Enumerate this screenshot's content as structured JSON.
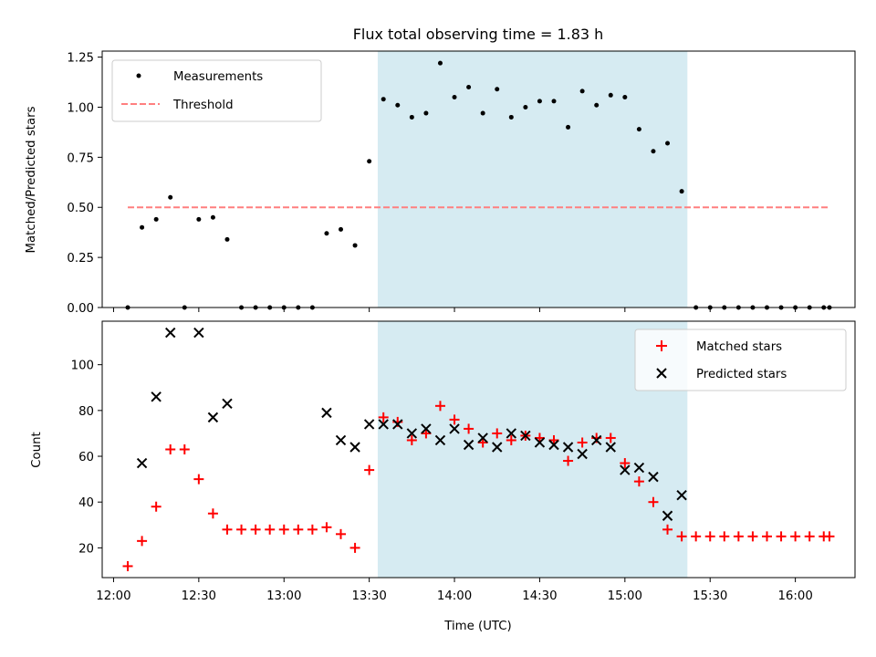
{
  "chart_data": [
    {
      "type": "scatter",
      "title": "Flux total observing time = 1.83 h",
      "xlabel": "",
      "ylabel": "Matched/Predicted stars",
      "ylim": [
        0,
        1.28
      ],
      "yticks": [
        0.0,
        0.25,
        0.5,
        0.75,
        1.0,
        1.25
      ],
      "ytick_labels": [
        "0.00",
        "0.25",
        "0.50",
        "0.75",
        "1.00",
        "1.25"
      ],
      "xlim": [
        "11:56",
        "16:21"
      ],
      "shaded_span": [
        "13:33",
        "15:22"
      ],
      "shade_color": "#add8e6",
      "legend_position": "upper left",
      "series": [
        {
          "name": "Measurements",
          "marker": "dot",
          "color": "#000000",
          "points": [
            [
              "12:05",
              0.0
            ],
            [
              "12:10",
              0.4
            ],
            [
              "12:15",
              0.44
            ],
            [
              "12:20",
              0.55
            ],
            [
              "12:25",
              0.0
            ],
            [
              "12:30",
              0.44
            ],
            [
              "12:35",
              0.45
            ],
            [
              "12:40",
              0.34
            ],
            [
              "12:45",
              0.0
            ],
            [
              "12:50",
              0.0
            ],
            [
              "12:55",
              0.0
            ],
            [
              "13:00",
              0.0
            ],
            [
              "13:05",
              0.0
            ],
            [
              "13:10",
              0.0
            ],
            [
              "13:15",
              0.37
            ],
            [
              "13:20",
              0.39
            ],
            [
              "13:25",
              0.31
            ],
            [
              "13:30",
              0.73
            ],
            [
              "13:35",
              1.04
            ],
            [
              "13:40",
              1.01
            ],
            [
              "13:45",
              0.95
            ],
            [
              "13:50",
              0.97
            ],
            [
              "13:55",
              1.22
            ],
            [
              "14:00",
              1.05
            ],
            [
              "14:05",
              1.1
            ],
            [
              "14:10",
              0.97
            ],
            [
              "14:15",
              1.09
            ],
            [
              "14:20",
              0.95
            ],
            [
              "14:25",
              1.0
            ],
            [
              "14:30",
              1.03
            ],
            [
              "14:35",
              1.03
            ],
            [
              "14:40",
              0.9
            ],
            [
              "14:45",
              1.08
            ],
            [
              "14:50",
              1.01
            ],
            [
              "14:55",
              1.06
            ],
            [
              "15:00",
              1.05
            ],
            [
              "15:05",
              0.89
            ],
            [
              "15:10",
              0.78
            ],
            [
              "15:15",
              0.82
            ],
            [
              "15:20",
              0.58
            ],
            [
              "15:25",
              0.0
            ],
            [
              "15:30",
              0.0
            ],
            [
              "15:35",
              0.0
            ],
            [
              "15:40",
              0.0
            ],
            [
              "15:45",
              0.0
            ],
            [
              "15:50",
              0.0
            ],
            [
              "15:55",
              0.0
            ],
            [
              "16:00",
              0.0
            ],
            [
              "16:05",
              0.0
            ],
            [
              "16:10",
              0.0
            ],
            [
              "16:12",
              0.0
            ]
          ]
        },
        {
          "name": "Threshold",
          "marker": "dashed-line",
          "color": "#ff7f7f",
          "points": [
            [
              "12:05",
              0.5
            ],
            [
              "16:12",
              0.5
            ]
          ]
        }
      ]
    },
    {
      "type": "scatter",
      "xlabel": "Time (UTC)",
      "ylabel": "Count",
      "ylim": [
        7,
        119
      ],
      "yticks": [
        20,
        40,
        60,
        80,
        100
      ],
      "ytick_labels": [
        "20",
        "40",
        "60",
        "80",
        "100"
      ],
      "xlim": [
        "11:56",
        "16:21"
      ],
      "xticks": [
        "12:00",
        "12:30",
        "13:00",
        "13:30",
        "14:00",
        "14:30",
        "15:00",
        "15:30",
        "16:00"
      ],
      "xtick_labels": [
        "12:00",
        "12:30",
        "13:00",
        "13:30",
        "14:00",
        "14:30",
        "15:00",
        "15:30",
        "16:00"
      ],
      "shaded_span": [
        "13:33",
        "15:22"
      ],
      "shade_color": "#add8e6",
      "legend_position": "upper right",
      "series": [
        {
          "name": "Matched stars",
          "marker": "plus",
          "color": "#ff0000",
          "points": [
            [
              "12:05",
              12
            ],
            [
              "12:10",
              23
            ],
            [
              "12:15",
              38
            ],
            [
              "12:20",
              63
            ],
            [
              "12:25",
              63
            ],
            [
              "12:30",
              50
            ],
            [
              "12:35",
              35
            ],
            [
              "12:40",
              28
            ],
            [
              "12:45",
              28
            ],
            [
              "12:50",
              28
            ],
            [
              "12:55",
              28
            ],
            [
              "13:00",
              28
            ],
            [
              "13:05",
              28
            ],
            [
              "13:10",
              28
            ],
            [
              "13:15",
              29
            ],
            [
              "13:20",
              26
            ],
            [
              "13:25",
              20
            ],
            [
              "13:30",
              54
            ],
            [
              "13:35",
              77
            ],
            [
              "13:40",
              75
            ],
            [
              "13:45",
              67
            ],
            [
              "13:50",
              70
            ],
            [
              "13:55",
              82
            ],
            [
              "14:00",
              76
            ],
            [
              "14:05",
              72
            ],
            [
              "14:10",
              66
            ],
            [
              "14:15",
              70
            ],
            [
              "14:20",
              67
            ],
            [
              "14:25",
              69
            ],
            [
              "14:30",
              68
            ],
            [
              "14:35",
              67
            ],
            [
              "14:40",
              58
            ],
            [
              "14:45",
              66
            ],
            [
              "14:50",
              68
            ],
            [
              "14:55",
              68
            ],
            [
              "15:00",
              57
            ],
            [
              "15:05",
              49
            ],
            [
              "15:10",
              40
            ],
            [
              "15:15",
              28
            ],
            [
              "15:20",
              25
            ],
            [
              "15:25",
              25
            ],
            [
              "15:30",
              25
            ],
            [
              "15:35",
              25
            ],
            [
              "15:40",
              25
            ],
            [
              "15:45",
              25
            ],
            [
              "15:50",
              25
            ],
            [
              "15:55",
              25
            ],
            [
              "16:00",
              25
            ],
            [
              "16:05",
              25
            ],
            [
              "16:10",
              25
            ],
            [
              "16:12",
              25
            ]
          ]
        },
        {
          "name": "Predicted stars",
          "marker": "x",
          "color": "#000000",
          "points": [
            [
              "12:10",
              57
            ],
            [
              "12:15",
              86
            ],
            [
              "12:20",
              114
            ],
            [
              "12:30",
              114
            ],
            [
              "12:35",
              77
            ],
            [
              "12:40",
              83
            ],
            [
              "13:15",
              79
            ],
            [
              "13:20",
              67
            ],
            [
              "13:25",
              64
            ],
            [
              "13:30",
              74
            ],
            [
              "13:35",
              74
            ],
            [
              "13:40",
              74
            ],
            [
              "13:45",
              70
            ],
            [
              "13:50",
              72
            ],
            [
              "13:55",
              67
            ],
            [
              "14:00",
              72
            ],
            [
              "14:05",
              65
            ],
            [
              "14:10",
              68
            ],
            [
              "14:15",
              64
            ],
            [
              "14:20",
              70
            ],
            [
              "14:25",
              69
            ],
            [
              "14:30",
              66
            ],
            [
              "14:35",
              65
            ],
            [
              "14:40",
              64
            ],
            [
              "14:45",
              61
            ],
            [
              "14:50",
              67
            ],
            [
              "14:55",
              64
            ],
            [
              "15:00",
              54
            ],
            [
              "15:05",
              55
            ],
            [
              "15:10",
              51
            ],
            [
              "15:15",
              34
            ],
            [
              "15:20",
              43
            ]
          ]
        }
      ]
    }
  ]
}
